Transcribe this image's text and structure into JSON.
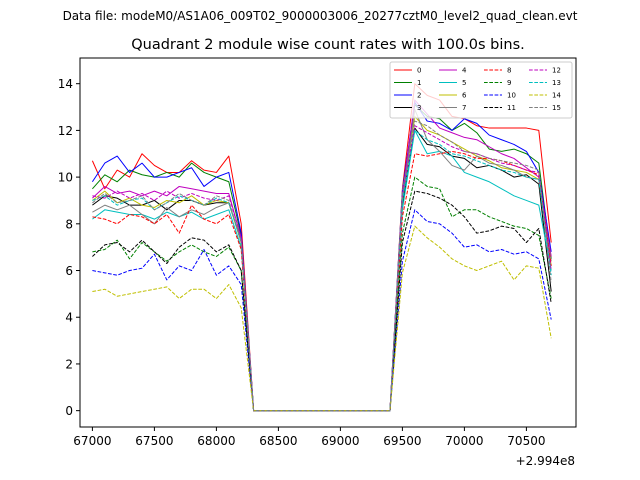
{
  "figure": {
    "suptitle": "Data file: modeM0/AS1A06_009T02_9000003006_20277cztM0_level2_quad_clean.evt",
    "offset_label": "+2.994e8"
  },
  "chart_data": {
    "type": "line",
    "title": "Quadrant 2 module wise count rates with 100.0s bins.",
    "xlabel": "",
    "ylabel": "",
    "x_offset": 299400000,
    "xlim": [
      66900,
      70900
    ],
    "ylim": [
      -0.7,
      15.1
    ],
    "x_ticks": [
      67000,
      67500,
      68000,
      68500,
      69000,
      69500,
      70000,
      70500
    ],
    "y_ticks": [
      0,
      2,
      4,
      6,
      8,
      10,
      12,
      14
    ],
    "grid": false,
    "legend_position": "top-right",
    "x": [
      67000,
      67100,
      67200,
      67300,
      67400,
      67500,
      67600,
      67700,
      67800,
      67900,
      68000,
      68100,
      68200,
      68300,
      68400,
      68500,
      68600,
      68700,
      68800,
      68900,
      69000,
      69100,
      69200,
      69300,
      69400,
      69500,
      69600,
      69700,
      69800,
      69900,
      70000,
      70100,
      70200,
      70300,
      70400,
      70500,
      70600,
      70700
    ],
    "series": [
      {
        "name": "0",
        "color": "#ff0000",
        "dash": "solid",
        "values": [
          10.7,
          9.5,
          10.3,
          10.0,
          11.0,
          10.5,
          10.2,
          10.2,
          10.7,
          10.3,
          10.2,
          10.9,
          8.0,
          0,
          0,
          0,
          0,
          0,
          0,
          0,
          0,
          0,
          0,
          0,
          0,
          9.5,
          14.0,
          13.5,
          13.3,
          12.6,
          12.5,
          12.2,
          12.1,
          12.1,
          12.1,
          12.1,
          12.0,
          7.2
        ]
      },
      {
        "name": "1",
        "color": "#008000",
        "dash": "solid",
        "values": [
          9.5,
          10.1,
          9.8,
          10.3,
          10.1,
          10.0,
          10.2,
          10.0,
          10.6,
          10.2,
          10.0,
          9.8,
          7.5,
          0,
          0,
          0,
          0,
          0,
          0,
          0,
          0,
          0,
          0,
          0,
          0,
          9.3,
          13.1,
          12.6,
          12.5,
          12.0,
          12.3,
          11.9,
          11.2,
          11.1,
          11.2,
          11.0,
          10.6,
          6.5
        ]
      },
      {
        "name": "2",
        "color": "#0000ff",
        "dash": "solid",
        "values": [
          9.8,
          10.6,
          10.9,
          10.2,
          10.6,
          10.0,
          10.0,
          10.2,
          10.4,
          9.6,
          10.0,
          10.2,
          7.6,
          0,
          0,
          0,
          0,
          0,
          0,
          0,
          0,
          0,
          0,
          0,
          0,
          9.4,
          13.2,
          12.4,
          12.3,
          12.0,
          12.5,
          12.3,
          11.8,
          11.6,
          11.4,
          11.1,
          10.2,
          6.8
        ]
      },
      {
        "name": "3",
        "color": "#000000",
        "dash": "solid",
        "values": [
          8.8,
          9.2,
          9.1,
          8.8,
          8.8,
          9.0,
          8.6,
          9.0,
          9.0,
          8.8,
          8.9,
          8.9,
          7.3,
          0,
          0,
          0,
          0,
          0,
          0,
          0,
          0,
          0,
          0,
          0,
          0,
          8.8,
          12.1,
          11.4,
          11.3,
          10.9,
          10.8,
          10.4,
          10.5,
          10.3,
          10.0,
          10.1,
          9.7,
          5.1
        ]
      },
      {
        "name": "4",
        "color": "#bf00bf",
        "dash": "solid",
        "values": [
          9.1,
          9.6,
          9.3,
          9.4,
          9.2,
          9.4,
          9.2,
          9.6,
          9.5,
          9.4,
          9.3,
          9.3,
          7.4,
          0,
          0,
          0,
          0,
          0,
          0,
          0,
          0,
          0,
          0,
          0,
          0,
          9.2,
          13.3,
          12.7,
          12.1,
          11.9,
          11.7,
          11.6,
          11.3,
          11.0,
          10.8,
          10.4,
          10.0,
          6.6
        ]
      },
      {
        "name": "5",
        "color": "#00bfbf",
        "dash": "solid",
        "values": [
          8.2,
          8.6,
          8.5,
          8.4,
          8.4,
          8.2,
          8.5,
          8.3,
          8.5,
          8.2,
          8.4,
          8.6,
          7.0,
          0,
          0,
          0,
          0,
          0,
          0,
          0,
          0,
          0,
          0,
          0,
          0,
          8.6,
          12.0,
          11.0,
          11.1,
          10.9,
          10.2,
          10.0,
          9.8,
          9.5,
          9.2,
          9.0,
          8.8,
          6.0
        ]
      },
      {
        "name": "6",
        "color": "#bfbf00",
        "dash": "solid",
        "values": [
          9.0,
          9.4,
          8.9,
          9.1,
          8.8,
          8.7,
          9.0,
          8.9,
          9.2,
          8.8,
          9.0,
          8.9,
          7.2,
          0,
          0,
          0,
          0,
          0,
          0,
          0,
          0,
          0,
          0,
          0,
          0,
          9.0,
          12.6,
          12.0,
          11.8,
          11.5,
          11.2,
          10.9,
          10.7,
          10.4,
          10.3,
          10.2,
          9.9,
          6.2
        ]
      },
      {
        "name": "7",
        "color": "#808080",
        "dash": "solid",
        "values": [
          8.5,
          8.8,
          8.6,
          8.8,
          8.4,
          8.0,
          8.7,
          8.3,
          8.6,
          8.4,
          8.7,
          8.9,
          7.3,
          0,
          0,
          0,
          0,
          0,
          0,
          0,
          0,
          0,
          0,
          0,
          0,
          9.0,
          12.9,
          11.6,
          11.1,
          10.5,
          10.3,
          10.9,
          10.6,
          10.5,
          10.3,
          10.0,
          9.9,
          6.4
        ]
      },
      {
        "name": "8",
        "color": "#ff0000",
        "dash": "dashed",
        "values": [
          8.3,
          8.2,
          8.0,
          8.4,
          8.3,
          8.0,
          8.4,
          7.6,
          8.8,
          8.2,
          8.0,
          8.4,
          6.9,
          0,
          0,
          0,
          0,
          0,
          0,
          0,
          0,
          0,
          0,
          0,
          0,
          8.3,
          11.0,
          10.9,
          11.0,
          11.1,
          11.0,
          10.8,
          10.8,
          10.7,
          10.5,
          10.3,
          10.1,
          6.2
        ]
      },
      {
        "name": "9",
        "color": "#008000",
        "dash": "dashed",
        "values": [
          6.8,
          6.9,
          7.3,
          6.5,
          7.2,
          6.8,
          6.4,
          6.8,
          7.1,
          6.8,
          6.6,
          7.0,
          6.0,
          0,
          0,
          0,
          0,
          0,
          0,
          0,
          0,
          0,
          0,
          0,
          0,
          7.6,
          10.0,
          9.6,
          9.5,
          8.3,
          8.6,
          8.6,
          8.3,
          8.1,
          7.9,
          7.8,
          7.5,
          4.8
        ]
      },
      {
        "name": "10",
        "color": "#0000ff",
        "dash": "dashed",
        "values": [
          6.0,
          5.9,
          5.8,
          6.0,
          6.1,
          6.7,
          5.6,
          6.2,
          6.0,
          6.9,
          5.8,
          6.2,
          5.4,
          0,
          0,
          0,
          0,
          0,
          0,
          0,
          0,
          0,
          0,
          0,
          0,
          6.4,
          8.6,
          8.1,
          8.0,
          7.6,
          7.0,
          7.1,
          6.8,
          6.9,
          6.7,
          6.8,
          6.5,
          3.9
        ]
      },
      {
        "name": "11",
        "color": "#000000",
        "dash": "dashed",
        "values": [
          6.6,
          7.1,
          7.2,
          6.8,
          7.3,
          6.8,
          6.3,
          7.0,
          7.4,
          7.3,
          6.8,
          7.1,
          6.0,
          0,
          0,
          0,
          0,
          0,
          0,
          0,
          0,
          0,
          0,
          0,
          0,
          7.2,
          9.4,
          9.3,
          9.1,
          8.8,
          8.3,
          7.6,
          7.7,
          7.9,
          7.8,
          7.2,
          7.8,
          4.6
        ]
      },
      {
        "name": "12",
        "color": "#bf00bf",
        "dash": "dashed",
        "values": [
          9.2,
          9.1,
          9.4,
          9.1,
          9.3,
          9.0,
          9.4,
          9.1,
          9.3,
          9.1,
          9.0,
          9.2,
          7.4,
          0,
          0,
          0,
          0,
          0,
          0,
          0,
          0,
          0,
          0,
          0,
          0,
          9.2,
          12.2,
          11.9,
          11.6,
          11.3,
          11.1,
          11.0,
          10.8,
          10.6,
          10.5,
          10.3,
          10.2,
          6.0
        ]
      },
      {
        "name": "13",
        "color": "#00bfbf",
        "dash": "dashed",
        "values": [
          9.0,
          9.2,
          8.8,
          9.0,
          9.1,
          8.6,
          8.9,
          9.2,
          9.0,
          8.8,
          9.1,
          8.9,
          7.2,
          0,
          0,
          0,
          0,
          0,
          0,
          0,
          0,
          0,
          0,
          0,
          0,
          9.0,
          12.0,
          11.6,
          11.4,
          11.0,
          10.9,
          10.7,
          10.5,
          10.3,
          10.2,
          10.0,
          9.9,
          5.8
        ]
      },
      {
        "name": "14",
        "color": "#bfbf00",
        "dash": "dashed",
        "values": [
          5.1,
          5.2,
          4.9,
          5.0,
          5.1,
          5.2,
          5.3,
          4.8,
          5.2,
          5.2,
          4.8,
          5.4,
          4.4,
          0,
          0,
          0,
          0,
          0,
          0,
          0,
          0,
          0,
          0,
          0,
          0,
          5.9,
          7.9,
          7.4,
          7.0,
          6.5,
          6.2,
          6.0,
          6.2,
          6.4,
          5.6,
          6.2,
          6.1,
          3.1
        ]
      },
      {
        "name": "15",
        "color": "#808080",
        "dash": "dashed",
        "values": [
          8.9,
          9.3,
          8.9,
          9.0,
          9.2,
          8.6,
          8.9,
          9.3,
          9.0,
          8.8,
          9.2,
          9.0,
          7.2,
          0,
          0,
          0,
          0,
          0,
          0,
          0,
          0,
          0,
          0,
          0,
          0,
          9.4,
          12.4,
          12.2,
          11.8,
          11.5,
          11.1,
          11.0,
          10.8,
          10.7,
          10.6,
          10.5,
          10.3,
          5.5
        ]
      }
    ]
  }
}
